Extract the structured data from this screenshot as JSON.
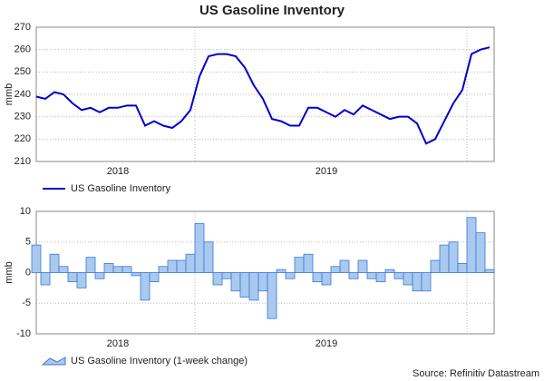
{
  "title": "US Gasoline Inventory",
  "source": "Source: Refinitiv Datastream",
  "chart_data": [
    {
      "type": "line",
      "y_label": "mmb",
      "categories": [
        null,
        null,
        null,
        null,
        null,
        null,
        null,
        null,
        null,
        "2018",
        null,
        null,
        null,
        null,
        null,
        null,
        null,
        null,
        null,
        null,
        null,
        null,
        null,
        null,
        null,
        null,
        null,
        null,
        null,
        null,
        null,
        null,
        "2019",
        null,
        null,
        null,
        null,
        null,
        null,
        null,
        null,
        null,
        null,
        null,
        null,
        null,
        null,
        null,
        null,
        null,
        null
      ],
      "series": [
        {
          "name": "US Gasoline Inventory",
          "color": "#0000cc",
          "values": [
            239,
            238,
            241,
            240,
            236,
            233,
            234,
            232,
            234,
            234,
            235,
            235,
            226,
            228,
            226,
            225,
            228,
            233,
            248,
            257,
            258,
            258,
            257,
            252,
            244,
            238,
            229,
            228,
            226,
            226,
            234,
            234,
            232,
            230,
            233,
            231,
            235,
            233,
            231,
            229,
            230,
            230,
            227,
            218,
            220,
            228,
            236,
            242,
            258,
            260,
            261
          ]
        }
      ],
      "ylim": [
        210,
        270
      ],
      "yticks": [
        210,
        220,
        230,
        240,
        250,
        260,
        270
      ],
      "grid": true
    },
    {
      "type": "bar",
      "y_label": "mmb",
      "categories": [
        null,
        null,
        null,
        null,
        null,
        null,
        null,
        null,
        null,
        "2018",
        null,
        null,
        null,
        null,
        null,
        null,
        null,
        null,
        null,
        null,
        null,
        null,
        null,
        null,
        null,
        null,
        null,
        null,
        null,
        null,
        null,
        null,
        "2019",
        null,
        null,
        null,
        null,
        null,
        null,
        null,
        null,
        null,
        null,
        null,
        null,
        null,
        null,
        null,
        null,
        null,
        null
      ],
      "series": [
        {
          "name": "US Gasoline Inventory (1-week change)",
          "color": "#a9c9ef",
          "edgecolor": "#3b78d8",
          "values": [
            4.5,
            -2,
            3,
            1,
            -1.5,
            -2.5,
            2.5,
            -1,
            1.5,
            1,
            1,
            -0.5,
            -4.5,
            -1.5,
            1,
            2,
            2,
            3,
            8,
            5,
            -2,
            -1,
            -3,
            -4,
            -4.5,
            -3,
            -7.5,
            0.5,
            -1,
            2.5,
            3,
            -1.5,
            -2,
            1,
            2,
            -1,
            2,
            -1,
            -1.5,
            0.5,
            -1,
            -2,
            -3,
            -3,
            2,
            4.5,
            5,
            1.5,
            9,
            6.5,
            0.5
          ]
        }
      ],
      "ylim": [
        -10,
        10
      ],
      "yticks": [
        -10,
        -5,
        0,
        5,
        10
      ],
      "grid": true
    }
  ]
}
